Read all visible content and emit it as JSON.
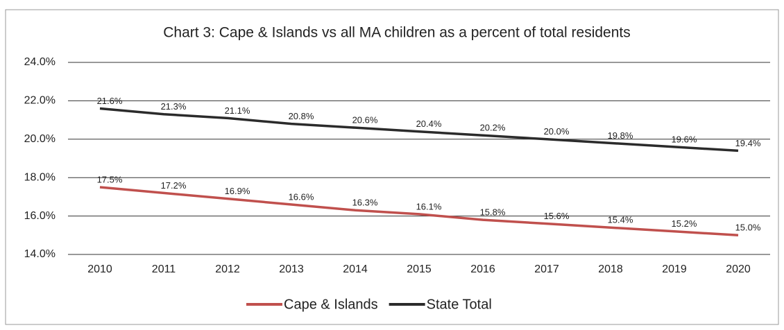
{
  "chart_data": {
    "type": "line",
    "title": "Chart 3: Cape & Islands vs all MA children as a percent of total residents",
    "categories": [
      "2010",
      "2011",
      "2012",
      "2013",
      "2014",
      "2015",
      "2016",
      "2017",
      "2018",
      "2019",
      "2020"
    ],
    "series": [
      {
        "name": "Cape & Islands",
        "color": "#c0504d",
        "values": [
          17.5,
          17.2,
          16.9,
          16.6,
          16.3,
          16.1,
          15.8,
          15.6,
          15.4,
          15.2,
          15.0
        ],
        "value_labels": [
          "17.5%",
          "17.2%",
          "16.9%",
          "16.6%",
          "16.3%",
          "16.1%",
          "15.8%",
          "15.6%",
          "15.4%",
          "15.2%",
          "15.0%"
        ]
      },
      {
        "name": "State Total",
        "color": "#2b2b2b",
        "values": [
          21.6,
          21.3,
          21.1,
          20.8,
          20.6,
          20.4,
          20.2,
          20.0,
          19.8,
          19.6,
          19.4
        ],
        "value_labels": [
          "21.6%",
          "21.3%",
          "21.1%",
          "20.8%",
          "20.6%",
          "20.4%",
          "20.2%",
          "20.0%",
          "19.8%",
          "19.6%",
          "19.4%"
        ]
      }
    ],
    "ylim": [
      14,
      24
    ],
    "yticks": [
      {
        "value": 14,
        "label": "14.0%"
      },
      {
        "value": 16,
        "label": "16.0%"
      },
      {
        "value": 18,
        "label": "18.0%"
      },
      {
        "value": 20,
        "label": "20.0%"
      },
      {
        "value": 22,
        "label": "22.0%"
      },
      {
        "value": 24,
        "label": "24.0%"
      }
    ],
    "grid": true,
    "legend": "bottom"
  }
}
